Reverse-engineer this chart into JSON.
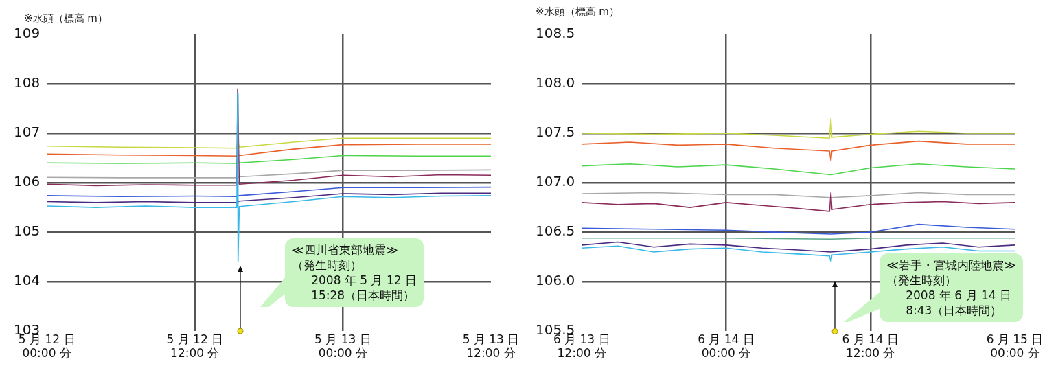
{
  "chart_data": [
    {
      "type": "line",
      "ylabel": "※水頭（標高 m）",
      "xlim": [
        "2008-05-12T00:00",
        "2008-05-13T12:00"
      ],
      "ylim": [
        103,
        109
      ],
      "yticks": [
        103,
        104,
        105,
        106,
        107,
        108,
        109
      ],
      "xticks": [
        {
          "value": "2008-05-12T00:00",
          "label": "5 月 12 日\n00:00 分"
        },
        {
          "value": "2008-05-12T12:00",
          "label": "5 月 12 日\n12:00 分"
        },
        {
          "value": "2008-05-13T00:00",
          "label": "5 月 13 日\n00:00 分"
        },
        {
          "value": "2008-05-13T12:00",
          "label": "5 月 13 日\n12:00 分"
        }
      ],
      "grid": true,
      "legend": false,
      "annotations": [
        "≪四川省東部地震≫\n（発生時刻）\n2008 年 5 月 12 日\n15:28（日本時間）"
      ],
      "series": [
        {
          "color": "#c8d840",
          "x": [
            "2008-05-12T00:00",
            "2008-05-12T06:00",
            "2008-05-12T12:00",
            "2008-05-12T15:24",
            "2008-05-12T15:28",
            "2008-05-12T15:36",
            "2008-05-12T20:00",
            "2008-05-13T00:00",
            "2008-05-13T06:00",
            "2008-05-13T12:00"
          ],
          "values": [
            106.74,
            106.72,
            106.71,
            106.7,
            106.85,
            106.72,
            106.82,
            106.9,
            106.9,
            106.9
          ]
        },
        {
          "color": "#e8602a",
          "x": [
            "2008-05-12T00:00",
            "2008-05-12T06:00",
            "2008-05-12T12:00",
            "2008-05-12T15:24",
            "2008-05-12T15:28",
            "2008-05-12T15:36",
            "2008-05-12T20:00",
            "2008-05-13T00:00",
            "2008-05-13T06:00",
            "2008-05-13T12:00"
          ],
          "values": [
            106.58,
            106.56,
            106.55,
            106.54,
            106.6,
            106.55,
            106.68,
            106.77,
            106.78,
            106.78
          ]
        },
        {
          "color": "#4cd44c",
          "x": [
            "2008-05-12T00:00",
            "2008-05-12T06:00",
            "2008-05-12T12:00",
            "2008-05-12T15:24",
            "2008-05-12T15:28",
            "2008-05-12T15:36",
            "2008-05-12T20:00",
            "2008-05-13T00:00",
            "2008-05-13T06:00",
            "2008-05-13T12:00"
          ],
          "values": [
            106.4,
            106.39,
            106.4,
            106.39,
            106.45,
            106.4,
            106.47,
            106.55,
            106.54,
            106.54
          ]
        },
        {
          "color": "#a8a8a8",
          "x": [
            "2008-05-12T00:00",
            "2008-05-12T06:00",
            "2008-05-12T12:00",
            "2008-05-12T15:24",
            "2008-05-12T15:36",
            "2008-05-12T20:00",
            "2008-05-13T00:00",
            "2008-05-13T06:00",
            "2008-05-13T12:00"
          ],
          "values": [
            106.11,
            106.1,
            106.1,
            106.1,
            106.12,
            106.18,
            106.25,
            106.25,
            106.26
          ]
        },
        {
          "color": "#8a2a5a",
          "x": [
            "2008-05-12T00:00",
            "2008-05-12T04:00",
            "2008-05-12T08:00",
            "2008-05-12T12:00",
            "2008-05-12T15:24",
            "2008-05-12T15:28",
            "2008-05-12T15:36",
            "2008-05-12T20:00",
            "2008-05-13T00:00",
            "2008-05-13T04:00",
            "2008-05-13T08:00",
            "2008-05-13T12:00"
          ],
          "values": [
            105.97,
            105.94,
            105.96,
            105.95,
            105.95,
            107.9,
            105.97,
            106.05,
            106.15,
            106.12,
            106.16,
            106.15
          ]
        },
        {
          "color": "#3a5ad8",
          "x": [
            "2008-05-12T00:00",
            "2008-05-12T06:00",
            "2008-05-12T12:00",
            "2008-05-12T15:24",
            "2008-05-12T15:36",
            "2008-05-12T20:00",
            "2008-05-13T00:00",
            "2008-05-13T06:00",
            "2008-05-13T12:00"
          ],
          "values": [
            105.74,
            105.72,
            105.73,
            105.72,
            105.74,
            105.82,
            105.9,
            105.9,
            105.91
          ]
        },
        {
          "color": "#4a2a80",
          "x": [
            "2008-05-12T00:00",
            "2008-05-12T04:00",
            "2008-05-12T08:00",
            "2008-05-12T12:00",
            "2008-05-12T15:24",
            "2008-05-12T15:36",
            "2008-05-12T20:00",
            "2008-05-13T00:00",
            "2008-05-13T04:00",
            "2008-05-13T08:00",
            "2008-05-13T12:00"
          ],
          "values": [
            105.62,
            105.6,
            105.62,
            105.6,
            105.6,
            105.63,
            105.7,
            105.78,
            105.76,
            105.79,
            105.79
          ]
        },
        {
          "color": "#38b8e8",
          "x": [
            "2008-05-12T00:00",
            "2008-05-12T04:00",
            "2008-05-12T08:00",
            "2008-05-12T12:00",
            "2008-05-12T15:24",
            "2008-05-12T15:28",
            "2008-05-12T15:30",
            "2008-05-12T15:36",
            "2008-05-12T20:00",
            "2008-05-13T00:00",
            "2008-05-13T04:00",
            "2008-05-13T08:00",
            "2008-05-13T12:00"
          ],
          "values": [
            105.53,
            105.5,
            105.53,
            105.5,
            105.5,
            107.8,
            104.4,
            105.52,
            105.62,
            105.72,
            105.7,
            105.73,
            105.74
          ]
        }
      ]
    },
    {
      "type": "line",
      "ylabel": "※水頭（標高 m）",
      "xlim": [
        "2008-06-13T12:00",
        "2008-06-15T00:00"
      ],
      "ylim": [
        105.5,
        108.5
      ],
      "yticks": [
        {
          "value": 105.5,
          "label": "105.5"
        },
        {
          "value": 106,
          "label": "106.0"
        },
        {
          "value": 106.5,
          "label": "106.5"
        },
        {
          "value": 107,
          "label": "107.0"
        },
        {
          "value": 107.5,
          "label": "107.5"
        },
        {
          "value": 108,
          "label": "108.0"
        },
        {
          "value": 108.5,
          "label": "108.5"
        }
      ],
      "xticks": [
        {
          "value": "2008-06-13T12:00",
          "label": "6 月 13 日\n12:00 分"
        },
        {
          "value": "2008-06-14T00:00",
          "label": "6 月 14 日\n00:00 分"
        },
        {
          "value": "2008-06-14T12:00",
          "label": "6 月 14 日\n12:00 分"
        },
        {
          "value": "2008-06-15T00:00",
          "label": "6 月 15 日\n00:00 分"
        }
      ],
      "grid": true,
      "legend": false,
      "annotations": [
        "≪岩手・宮城内陸地震≫\n（発生時刻）\n2008 年 6 月 14 日\n8:43（日本時間）"
      ],
      "series": [
        {
          "color": "#c8d840",
          "x": [
            "2008-06-13T12:00",
            "2008-06-13T18:00",
            "2008-06-14T00:00",
            "2008-06-14T04:00",
            "2008-06-14T08:36",
            "2008-06-14T08:43",
            "2008-06-14T08:48",
            "2008-06-14T12:00",
            "2008-06-14T16:00",
            "2008-06-14T20:00",
            "2008-06-15T00:00"
          ],
          "values": [
            107.5,
            107.49,
            107.5,
            107.48,
            107.45,
            107.65,
            107.46,
            107.49,
            107.52,
            107.5,
            107.5
          ]
        },
        {
          "color": "#e8602a",
          "x": [
            "2008-06-13T12:00",
            "2008-06-13T16:00",
            "2008-06-13T20:00",
            "2008-06-14T00:00",
            "2008-06-14T04:00",
            "2008-06-14T08:36",
            "2008-06-14T08:43",
            "2008-06-14T08:48",
            "2008-06-14T12:00",
            "2008-06-14T16:00",
            "2008-06-14T20:00",
            "2008-06-15T00:00"
          ],
          "values": [
            107.39,
            107.41,
            107.38,
            107.39,
            107.35,
            107.32,
            107.22,
            107.32,
            107.38,
            107.42,
            107.39,
            107.39
          ]
        },
        {
          "color": "#4cd44c",
          "x": [
            "2008-06-13T12:00",
            "2008-06-13T16:00",
            "2008-06-13T20:00",
            "2008-06-14T00:00",
            "2008-06-14T04:00",
            "2008-06-14T08:42",
            "2008-06-14T12:00",
            "2008-06-14T16:00",
            "2008-06-14T20:00",
            "2008-06-15T00:00"
          ],
          "values": [
            107.17,
            107.19,
            107.16,
            107.18,
            107.14,
            107.08,
            107.15,
            107.19,
            107.16,
            107.14
          ]
        },
        {
          "color": "#a8a8a8",
          "x": [
            "2008-06-13T12:00",
            "2008-06-13T18:00",
            "2008-06-14T00:00",
            "2008-06-14T04:00",
            "2008-06-14T08:42",
            "2008-06-14T12:00",
            "2008-06-14T16:00",
            "2008-06-14T20:00",
            "2008-06-15T00:00"
          ],
          "values": [
            106.89,
            106.9,
            106.88,
            106.88,
            106.85,
            106.87,
            106.9,
            106.88,
            106.88
          ]
        },
        {
          "color": "#8a2a5a",
          "x": [
            "2008-06-13T12:00",
            "2008-06-13T15:00",
            "2008-06-13T18:00",
            "2008-06-13T21:00",
            "2008-06-14T00:00",
            "2008-06-14T03:00",
            "2008-06-14T06:00",
            "2008-06-14T08:36",
            "2008-06-14T08:43",
            "2008-06-14T08:48",
            "2008-06-14T12:00",
            "2008-06-14T15:00",
            "2008-06-14T18:00",
            "2008-06-14T21:00",
            "2008-06-15T00:00"
          ],
          "values": [
            106.8,
            106.78,
            106.79,
            106.75,
            106.8,
            106.77,
            106.74,
            106.71,
            106.9,
            106.73,
            106.78,
            106.8,
            106.81,
            106.79,
            106.8
          ]
        },
        {
          "color": "#3a5ad8",
          "x": [
            "2008-06-13T12:00",
            "2008-06-13T18:00",
            "2008-06-14T00:00",
            "2008-06-14T04:00",
            "2008-06-14T08:42",
            "2008-06-14T12:00",
            "2008-06-14T16:00",
            "2008-06-14T20:00",
            "2008-06-15T00:00"
          ],
          "values": [
            106.54,
            106.53,
            106.52,
            106.5,
            106.48,
            106.5,
            106.58,
            106.55,
            106.53
          ]
        },
        {
          "color": "#5aa888",
          "x": [
            "2008-06-13T12:00",
            "2008-06-14T00:00",
            "2008-06-14T08:42",
            "2008-06-14T12:00",
            "2008-06-15T00:00"
          ],
          "values": [
            106.44,
            106.44,
            106.43,
            106.44,
            106.44
          ]
        },
        {
          "color": "#4a2a80",
          "x": [
            "2008-06-13T12:00",
            "2008-06-13T15:00",
            "2008-06-13T18:00",
            "2008-06-13T21:00",
            "2008-06-14T00:00",
            "2008-06-14T03:00",
            "2008-06-14T06:00",
            "2008-06-14T08:42",
            "2008-06-14T12:00",
            "2008-06-14T15:00",
            "2008-06-14T18:00",
            "2008-06-14T21:00",
            "2008-06-15T00:00"
          ],
          "values": [
            106.37,
            106.4,
            106.35,
            106.38,
            106.37,
            106.34,
            106.32,
            106.3,
            106.33,
            106.37,
            106.39,
            106.35,
            106.37
          ]
        },
        {
          "color": "#38b8e8",
          "x": [
            "2008-06-13T12:00",
            "2008-06-13T15:00",
            "2008-06-13T18:00",
            "2008-06-13T21:00",
            "2008-06-14T00:00",
            "2008-06-14T03:00",
            "2008-06-14T06:00",
            "2008-06-14T08:36",
            "2008-06-14T08:43",
            "2008-06-14T08:48",
            "2008-06-14T12:00",
            "2008-06-14T15:00",
            "2008-06-14T18:00",
            "2008-06-14T21:00",
            "2008-06-15T00:00"
          ],
          "values": [
            106.34,
            106.36,
            106.3,
            106.33,
            106.34,
            106.3,
            106.28,
            106.26,
            106.2,
            106.27,
            106.3,
            106.33,
            106.35,
            106.31,
            106.31
          ]
        }
      ]
    }
  ]
}
